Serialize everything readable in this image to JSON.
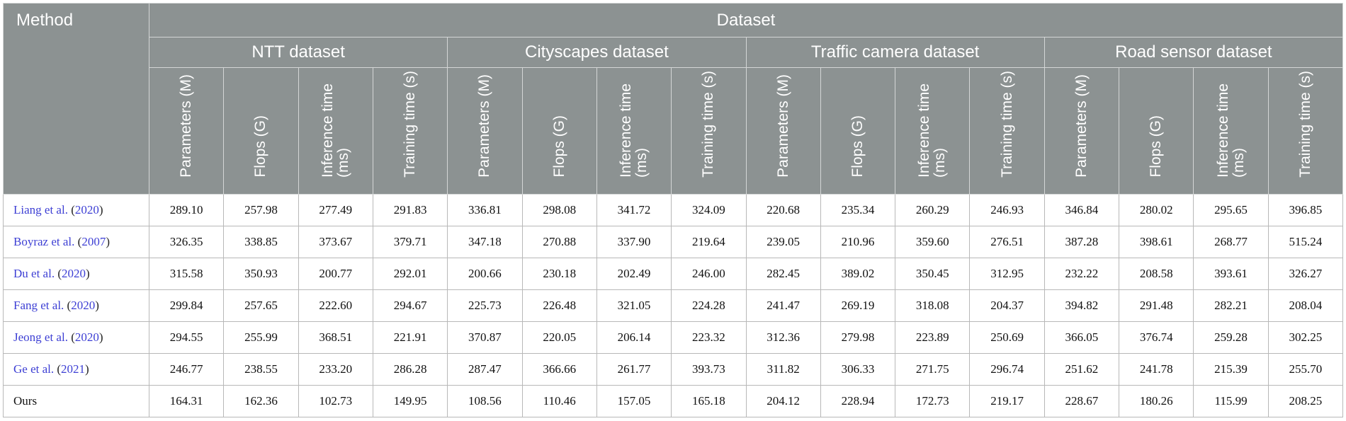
{
  "header": {
    "method_label": "Method",
    "dataset_label": "Dataset",
    "groups": [
      {
        "label": "NTT dataset"
      },
      {
        "label": "Cityscapes dataset"
      },
      {
        "label": "Traffic camera dataset"
      },
      {
        "label": "Road sensor dataset"
      }
    ],
    "metrics": [
      "Parameters (M)",
      "Flops (G)",
      "Inference time (ms)",
      "Training time (s)"
    ]
  },
  "rows": [
    {
      "author": "Liang et al.",
      "year": "2020",
      "values": [
        "289.10",
        "257.98",
        "277.49",
        "291.83",
        "336.81",
        "298.08",
        "341.72",
        "324.09",
        "220.68",
        "235.34",
        "260.29",
        "246.93",
        "346.84",
        "280.02",
        "295.65",
        "396.85"
      ]
    },
    {
      "author": "Boyraz et al.",
      "year": "2007",
      "values": [
        "326.35",
        "338.85",
        "373.67",
        "379.71",
        "347.18",
        "270.88",
        "337.90",
        "219.64",
        "239.05",
        "210.96",
        "359.60",
        "276.51",
        "387.28",
        "398.61",
        "268.77",
        "515.24"
      ]
    },
    {
      "author": "Du et al.",
      "year": "2020",
      "values": [
        "315.58",
        "350.93",
        "200.77",
        "292.01",
        "200.66",
        "230.18",
        "202.49",
        "246.00",
        "282.45",
        "389.02",
        "350.45",
        "312.95",
        "232.22",
        "208.58",
        "393.61",
        "326.27"
      ]
    },
    {
      "author": "Fang et al.",
      "year": "2020",
      "values": [
        "299.84",
        "257.65",
        "222.60",
        "294.67",
        "225.73",
        "226.48",
        "321.05",
        "224.28",
        "241.47",
        "269.19",
        "318.08",
        "204.37",
        "394.82",
        "291.48",
        "282.21",
        "208.04"
      ]
    },
    {
      "author": "Jeong et al.",
      "year": "2020",
      "values": [
        "294.55",
        "255.99",
        "368.51",
        "221.91",
        "370.87",
        "220.05",
        "206.14",
        "223.32",
        "312.36",
        "279.98",
        "223.89",
        "250.69",
        "366.05",
        "376.74",
        "259.28",
        "302.25"
      ]
    },
    {
      "author": "Ge et al.",
      "year": "2021",
      "values": [
        "246.77",
        "238.55",
        "233.20",
        "286.28",
        "287.47",
        "366.66",
        "261.77",
        "393.73",
        "311.82",
        "306.33",
        "271.75",
        "296.74",
        "251.62",
        "241.78",
        "215.39",
        "255.70"
      ]
    },
    {
      "author": "Ours",
      "year": "",
      "values": [
        "164.31",
        "162.36",
        "102.73",
        "149.95",
        "108.56",
        "110.46",
        "157.05",
        "165.18",
        "204.12",
        "228.94",
        "172.73",
        "219.17",
        "228.67",
        "180.26",
        "115.99",
        "208.25"
      ]
    }
  ]
}
